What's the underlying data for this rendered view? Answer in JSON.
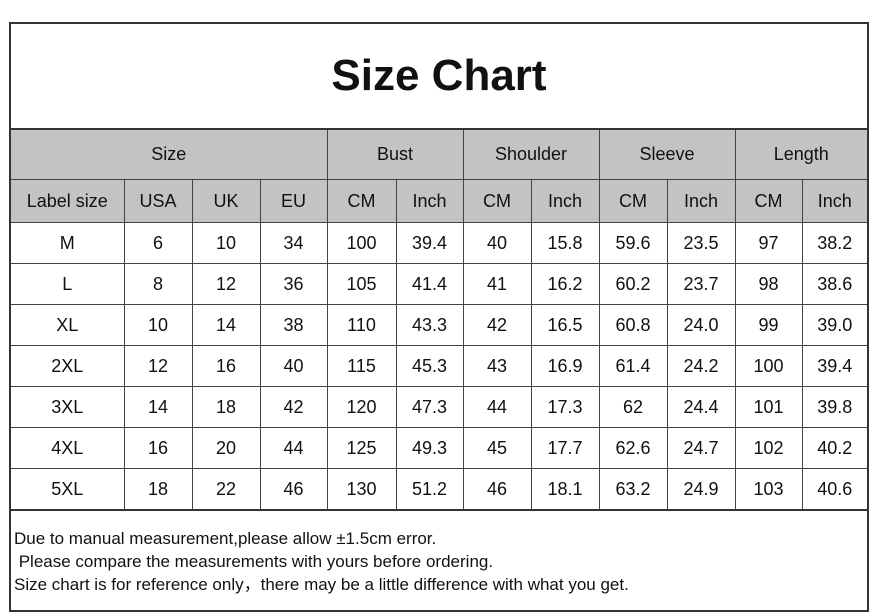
{
  "title": "Size Chart",
  "groups": [
    "Size",
    "Bust",
    "Shoulder",
    "Sleeve",
    "Length"
  ],
  "columns": [
    "Label size",
    "USA",
    "UK",
    "EU",
    "CM",
    "Inch",
    "CM",
    "Inch",
    "CM",
    "Inch",
    "CM",
    "Inch"
  ],
  "rows": [
    [
      "M",
      "6",
      "10",
      "34",
      "100",
      "39.4",
      "40",
      "15.8",
      "59.6",
      "23.5",
      "97",
      "38.2"
    ],
    [
      "L",
      "8",
      "12",
      "36",
      "105",
      "41.4",
      "41",
      "16.2",
      "60.2",
      "23.7",
      "98",
      "38.6"
    ],
    [
      "XL",
      "10",
      "14",
      "38",
      "110",
      "43.3",
      "42",
      "16.5",
      "60.8",
      "24.0",
      "99",
      "39.0"
    ],
    [
      "2XL",
      "12",
      "16",
      "40",
      "115",
      "45.3",
      "43",
      "16.9",
      "61.4",
      "24.2",
      "100",
      "39.4"
    ],
    [
      "3XL",
      "14",
      "18",
      "42",
      "120",
      "47.3",
      "44",
      "17.3",
      "62",
      "24.4",
      "101",
      "39.8"
    ],
    [
      "4XL",
      "16",
      "20",
      "44",
      "125",
      "49.3",
      "45",
      "17.7",
      "62.6",
      "24.7",
      "102",
      "40.2"
    ],
    [
      "5XL",
      "18",
      "22",
      "46",
      "130",
      "51.2",
      "46",
      "18.1",
      "63.2",
      "24.9",
      "103",
      "40.6"
    ]
  ],
  "notes": [
    "Due to manual measurement,please allow ±1.5cm error.",
    " Please compare the measurements with yours before ordering.",
    "Size chart is for reference only，there may be a little difference with what you get."
  ],
  "colors": {
    "header_bg": "#c3c3c3",
    "border": "#333333"
  }
}
